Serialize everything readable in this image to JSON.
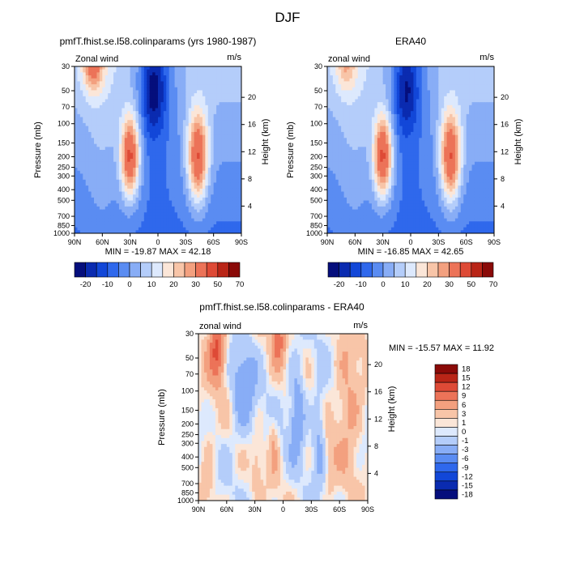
{
  "figure_title": "DJF",
  "colors": {
    "palette_20": [
      "#050e7c",
      "#0a2bb0",
      "#1247d8",
      "#2f68ec",
      "#5a8cf2",
      "#88adf6",
      "#b4cdfa",
      "#dde9fd",
      "#fbe6d8",
      "#f8c5a8",
      "#f3a07f",
      "#ec7358",
      "#de4a36",
      "#b92517",
      "#8a0a08"
    ],
    "palette_diff": [
      "#050e7c",
      "#0a2bb0",
      "#1247d8",
      "#2f68ec",
      "#5a8cf2",
      "#88adf6",
      "#b4cdfa",
      "#dde9fd",
      "#fbe6d8",
      "#f8c5a8",
      "#f3a07f",
      "#ec7358",
      "#de4a36",
      "#b92517",
      "#8a0a08"
    ]
  },
  "chart_data": [
    {
      "type": "heatmap",
      "title": "pmfT.fhist.se.l58.colinparams (yrs 1980-1987)",
      "label_left": "Zonal wind",
      "label_right": "m/s",
      "ylabel": "Pressure (mb)",
      "ylabel_right": "Height (km)",
      "xticks": [
        "90N",
        "60N",
        "30N",
        "0",
        "30S",
        "60S",
        "90S"
      ],
      "x_values": [
        90,
        60,
        30,
        0,
        -30,
        -60,
        -90
      ],
      "yticks": [
        "30",
        "50",
        "70",
        "100",
        "150",
        "200",
        "250",
        "300",
        "400",
        "500",
        "700",
        "850",
        "1000"
      ],
      "y_values": [
        30,
        50,
        70,
        100,
        150,
        200,
        250,
        300,
        400,
        500,
        700,
        850,
        1000
      ],
      "height_ticks": [
        "4",
        "8",
        "12",
        "16",
        "20"
      ],
      "height_values": [
        4,
        8,
        12,
        16,
        20
      ],
      "stats": "MIN = -19.87   MAX = 42.18",
      "min": -19.87,
      "max": 42.18,
      "colorbar_levels": [
        -25,
        -20,
        -15,
        -10,
        -5,
        0,
        5,
        10,
        15,
        20,
        25,
        30,
        40,
        50,
        60,
        70
      ],
      "colorbar_labels": [
        "-20",
        "-10",
        "0",
        "10",
        "20",
        "30",
        "50",
        "70"
      ],
      "features": [
        {
          "lat": 70,
          "p": 30,
          "v": 25,
          "slat": 11,
          "slp": 0.55
        },
        {
          "lat": 30,
          "p": 200,
          "v": 42,
          "slat": 10,
          "slp": 0.85
        },
        {
          "lat": -43,
          "p": 200,
          "v": 40,
          "slat": 11,
          "slp": 0.95
        },
        {
          "lat": 5,
          "p": 50,
          "v": -20,
          "slat": 13,
          "slp": 0.9
        }
      ]
    },
    {
      "type": "heatmap",
      "title": "ERA40",
      "label_left": "zonal wind",
      "label_right": "m/s",
      "ylabel": "Pressure (mb)",
      "ylabel_right": "Height (km)",
      "xticks": [
        "90N",
        "60N",
        "30N",
        "0",
        "30S",
        "60S",
        "90S"
      ],
      "x_values": [
        90,
        60,
        30,
        0,
        -30,
        -60,
        -90
      ],
      "yticks": [
        "30",
        "50",
        "70",
        "100",
        "150",
        "200",
        "250",
        "300",
        "400",
        "500",
        "700",
        "850",
        "1000"
      ],
      "y_values": [
        30,
        50,
        70,
        100,
        150,
        200,
        250,
        300,
        400,
        500,
        700,
        850,
        1000
      ],
      "height_ticks": [
        "4",
        "8",
        "12",
        "16",
        "20"
      ],
      "height_values": [
        4,
        8,
        12,
        16,
        20
      ],
      "stats": "MIN = -16.85   MAX = 42.65",
      "min": -16.85,
      "max": 42.65,
      "colorbar_levels": [
        -25,
        -20,
        -15,
        -10,
        -5,
        0,
        5,
        10,
        15,
        20,
        25,
        30,
        40,
        50,
        60,
        70
      ],
      "colorbar_labels": [
        "-20",
        "-10",
        "0",
        "10",
        "20",
        "30",
        "50",
        "70"
      ],
      "features": [
        {
          "lat": 70,
          "p": 30,
          "v": 15,
          "slat": 11,
          "slp": 0.55
        },
        {
          "lat": 30,
          "p": 200,
          "v": 42,
          "slat": 10,
          "slp": 0.85
        },
        {
          "lat": -43,
          "p": 200,
          "v": 40,
          "slat": 11,
          "slp": 0.95
        },
        {
          "lat": 5,
          "p": 50,
          "v": -17,
          "slat": 13,
          "slp": 0.9
        }
      ]
    },
    {
      "type": "heatmap",
      "title": "pmfT.fhist.se.l58.colinparams - ERA40",
      "label_left": "zonal wind",
      "label_right": "m/s",
      "ylabel": "Pressure (mb)",
      "ylabel_right": "Height (km)",
      "xticks": [
        "90N",
        "60N",
        "30N",
        "0",
        "30S",
        "60S",
        "90S"
      ],
      "x_values": [
        90,
        60,
        30,
        0,
        -30,
        -60,
        -90
      ],
      "yticks": [
        "30",
        "50",
        "70",
        "100",
        "150",
        "200",
        "250",
        "300",
        "400",
        "500",
        "700",
        "850",
        "1000"
      ],
      "y_values": [
        30,
        50,
        70,
        100,
        150,
        200,
        250,
        300,
        400,
        500,
        700,
        850,
        1000
      ],
      "height_ticks": [
        "4",
        "8",
        "12",
        "16",
        "20"
      ],
      "height_values": [
        4,
        8,
        12,
        16,
        20
      ],
      "stats": "MIN = -15.57   MAX =  11.92",
      "min": -15.57,
      "max": 11.92,
      "colorbar_levels": [
        -21,
        -18,
        -15,
        -12,
        -9,
        -6,
        -3,
        -1,
        0,
        1,
        3,
        6,
        9,
        12,
        15,
        18,
        21
      ],
      "colorbar_labels": [
        "18",
        "15",
        "12",
        "9",
        "6",
        "3",
        "1",
        "0",
        "-1",
        "-3",
        "-6",
        "-9",
        "-12",
        "-15",
        "-18"
      ],
      "features": [
        {
          "lat": 70,
          "p": 40,
          "v": 10,
          "slat": 9,
          "slp": 0.7
        },
        {
          "lat": 5,
          "p": 35,
          "v": 7,
          "slat": 7,
          "slp": 0.5
        },
        {
          "lat": -70,
          "p": 120,
          "v": 4,
          "slat": 14,
          "slp": 1.4
        },
        {
          "lat": 42,
          "p": 100,
          "v": -5,
          "slat": 13,
          "slp": 1.0
        },
        {
          "lat": -15,
          "p": 150,
          "v": -6,
          "slat": 8,
          "slp": 0.9
        },
        {
          "lat": -38,
          "p": 250,
          "v": -4,
          "slat": 7,
          "slp": 1.0
        },
        {
          "lat": 10,
          "p": 300,
          "v": 3,
          "slat": 5,
          "slp": 0.7
        },
        {
          "lat": 28,
          "p": 500,
          "v": 2,
          "slat": 5,
          "slp": 0.6
        },
        {
          "lat": -50,
          "p": 500,
          "v": 2,
          "slat": 6,
          "slp": 0.8
        },
        {
          "lat": 80,
          "p": 600,
          "v": 2,
          "slat": 8,
          "slp": 1.2
        }
      ]
    }
  ]
}
